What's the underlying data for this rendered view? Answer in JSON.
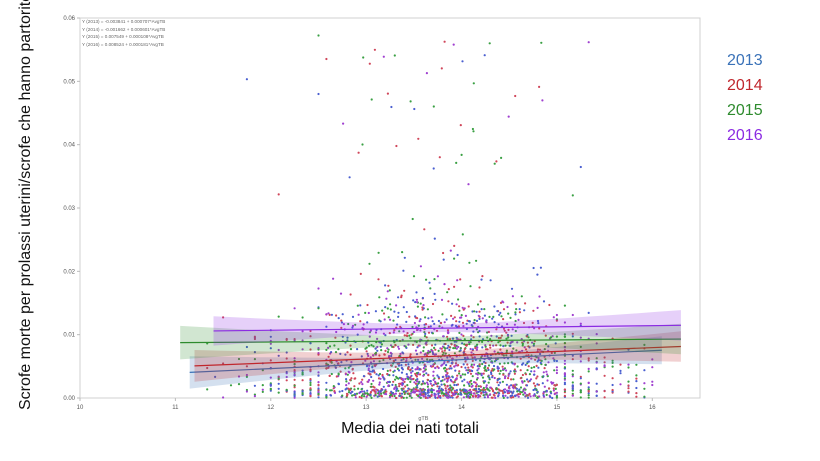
{
  "chart_data": {
    "type": "scatter",
    "title": "",
    "xlabel": "Media dei nati totali",
    "xlabel_small": "gTB",
    "ylabel": "Scrofe morte per prolassi uterini/scrofe che hanno partorito",
    "xlim": [
      10,
      16.5
    ],
    "ylim": [
      0,
      0.06
    ],
    "xticks": [
      "10",
      "11",
      "12",
      "13",
      "14",
      "15",
      "16"
    ],
    "yticks": [
      "0.00",
      "0.01",
      "0.02",
      "0.03",
      "0.04",
      "0.05",
      "0.06"
    ],
    "grid": false,
    "legend_position": "right",
    "series": [
      {
        "name": "2013",
        "color": "#3a72b8",
        "point_color": "#4a5fd0",
        "equation": "Y (2013) = -0.003841 + 0.000707*AvgTB",
        "intercept": -0.003841,
        "slope": 0.000707,
        "x_range": [
          11.15,
          16.1
        ]
      },
      {
        "name": "2014",
        "color": "#c0272d",
        "point_color": "#d0465a",
        "equation": "Y (2014) = -0.001662 + 0.000601*AvgTB",
        "intercept": -0.001662,
        "slope": 0.000601,
        "x_range": [
          11.2,
          16.3
        ]
      },
      {
        "name": "2015",
        "color": "#2e8b2e",
        "point_color": "#3aa043",
        "equation": "Y (2015) = 0.007549 + 0.000108*AvgTB",
        "intercept": 0.007549,
        "slope": 0.000108,
        "x_range": [
          11.05,
          16.3
        ]
      },
      {
        "name": "2016",
        "color": "#8b2be2",
        "point_color": "#a040d0",
        "equation": "Y (2016) = 0.008524 + 0.000181*AvgTB",
        "intercept": 0.008524,
        "slope": 0.000181,
        "x_range": [
          11.4,
          16.3
        ]
      }
    ],
    "point_distribution": {
      "x_center": 13.8,
      "x_spread": 0.85,
      "y_typical_range": [
        0,
        0.03
      ],
      "y_max": 0.058
    }
  },
  "legend": {
    "items": [
      "2013",
      "2014",
      "2015",
      "2016"
    ]
  },
  "equations": [
    "Y (2013) = -0.003841 + 0.000707*AvgTB",
    "Y (2014) = -0.001662 + 0.000601*AvgTB",
    "Y (2015) = 0.007549 + 0.000108*AvgTB",
    "Y (2016) = 0.008524 + 0.000181*AvgTB"
  ]
}
